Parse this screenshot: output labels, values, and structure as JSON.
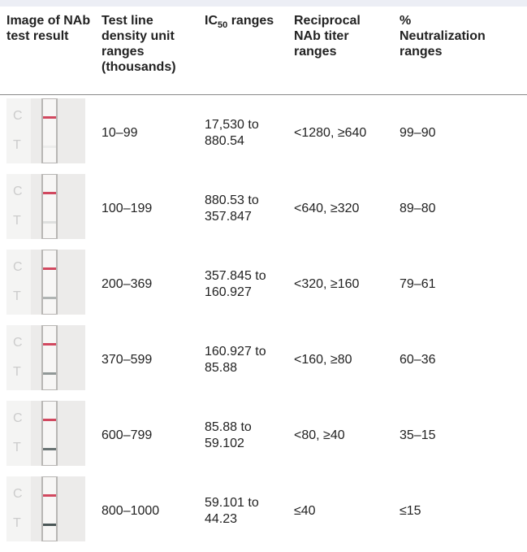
{
  "table": {
    "header": [
      {
        "text": "Image of NAb test result"
      },
      {
        "text": "Test line density unit ranges (thousands)"
      },
      {
        "main": "IC",
        "sub": "50",
        "rest": " ranges"
      },
      {
        "text": "Reciprocal NAb titer ranges"
      },
      {
        "text": "% Neutralization ranges"
      }
    ],
    "rows": [
      [
        "10–99",
        "17,530 to 880.54",
        "<1280, ≥640",
        "99–90"
      ],
      [
        "100–199",
        "880.53 to 357.847",
        "<640, ≥320",
        "89–80"
      ],
      [
        "200–369",
        "357.845 to 160.927",
        "<320, ≥160",
        "79–61"
      ],
      [
        "370–599",
        "160.927 to 85.88",
        "<160, ≥80",
        "60–36"
      ],
      [
        "600–799",
        "85.88 to 59.102",
        "<80, ≥40",
        "35–15"
      ],
      [
        "800–1000",
        "59.101 to 44.23",
        "≤40",
        "≤15"
      ]
    ]
  }
}
